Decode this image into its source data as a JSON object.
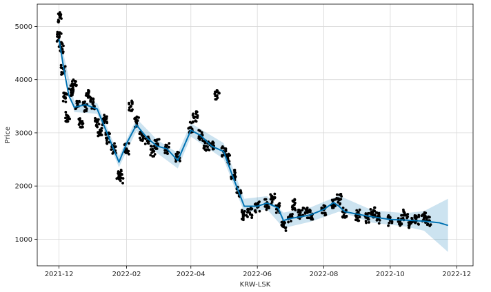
{
  "chart_data": {
    "type": "line",
    "xlabel": "KRW-LSK",
    "ylabel": "Price",
    "xlim": [
      "2021-11-11",
      "2022-12-16"
    ],
    "ylim": [
      500,
      5420
    ],
    "grid": true,
    "x_ticks": [
      "2021-12",
      "2022-02",
      "2022-04",
      "2022-06",
      "2022-08",
      "2022-10",
      "2022-12"
    ],
    "y_ticks": [
      1000,
      2000,
      3000,
      4000,
      5000
    ],
    "colors": {
      "forecast": "#0072B2",
      "interval": "#0072B2",
      "actual": "#000000"
    },
    "series": [
      {
        "kind": "forecast",
        "x": [
          "2021-12-01",
          "2021-12-05",
          "2021-12-10",
          "2021-12-15",
          "2021-12-25",
          "2022-01-05",
          "2022-01-15",
          "2022-01-25",
          "2022-02-01",
          "2022-02-10",
          "2022-02-20",
          "2022-03-01",
          "2022-03-10",
          "2022-03-20",
          "2022-04-01",
          "2022-04-10",
          "2022-04-20",
          "2022-05-01",
          "2022-05-10",
          "2022-05-20",
          "2022-06-01",
          "2022-06-10",
          "2022-06-20",
          "2022-06-25",
          "2022-07-01",
          "2022-07-10",
          "2022-07-20",
          "2022-08-01",
          "2022-08-10",
          "2022-08-15",
          "2022-08-20",
          "2022-09-01",
          "2022-09-15",
          "2022-10-01",
          "2022-10-15",
          "2022-11-01",
          "2022-11-15",
          "2022-11-23"
        ],
        "y": [
          4760,
          4250,
          3700,
          3480,
          3530,
          3450,
          2950,
          2450,
          2800,
          3150,
          2900,
          2750,
          2700,
          2480,
          3050,
          2950,
          2750,
          2650,
          2150,
          1620,
          1620,
          1680,
          1590,
          1350,
          1390,
          1420,
          1460,
          1560,
          1690,
          1620,
          1520,
          1470,
          1420,
          1370,
          1360,
          1340,
          1310,
          1260
        ]
      },
      {
        "kind": "interval",
        "x": [
          "2021-12-01",
          "2021-12-15",
          "2022-01-05",
          "2022-01-25",
          "2022-02-10",
          "2022-03-01",
          "2022-03-20",
          "2022-04-01",
          "2022-05-01",
          "2022-05-20",
          "2022-06-10",
          "2022-06-25",
          "2022-07-20",
          "2022-08-15",
          "2022-09-15",
          "2022-10-15",
          "2022-11-01",
          "2022-11-23"
        ],
        "lower": [
          4680,
          3390,
          3360,
          2350,
          3040,
          2620,
          2330,
          2930,
          2510,
          1500,
          1560,
          1210,
          1330,
          1520,
          1310,
          1240,
          1160,
          760
        ],
        "upper": [
          4850,
          3590,
          3560,
          2560,
          3270,
          2870,
          2620,
          3180,
          2810,
          1760,
          1810,
          1500,
          1600,
          1820,
          1540,
          1490,
          1530,
          1760
        ]
      },
      {
        "kind": "actual",
        "x": [
          "2021-12-01",
          "2021-12-02",
          "2021-12-03",
          "2021-12-05",
          "2021-12-07",
          "2021-12-09",
          "2021-12-12",
          "2021-12-15",
          "2021-12-18",
          "2021-12-21",
          "2021-12-25",
          "2021-12-28",
          "2022-01-01",
          "2022-01-05",
          "2022-01-08",
          "2022-01-12",
          "2022-01-15",
          "2022-01-20",
          "2022-01-25",
          "2022-01-27",
          "2022-02-01",
          "2022-02-05",
          "2022-02-10",
          "2022-02-15",
          "2022-02-20",
          "2022-02-25",
          "2022-03-01",
          "2022-03-10",
          "2022-03-20",
          "2022-04-01",
          "2022-04-05",
          "2022-04-10",
          "2022-04-15",
          "2022-04-20",
          "2022-04-25",
          "2022-05-01",
          "2022-05-05",
          "2022-05-10",
          "2022-05-15",
          "2022-05-20",
          "2022-05-25",
          "2022-06-01",
          "2022-06-10",
          "2022-06-15",
          "2022-06-20",
          "2022-06-25",
          "2022-07-01",
          "2022-07-05",
          "2022-07-10",
          "2022-07-15",
          "2022-07-20",
          "2022-08-01",
          "2022-08-10",
          "2022-08-15",
          "2022-08-20",
          "2022-09-01",
          "2022-09-10",
          "2022-09-15",
          "2022-09-20",
          "2022-10-01",
          "2022-10-10",
          "2022-10-15",
          "2022-10-20",
          "2022-10-25",
          "2022-11-01",
          "2022-11-05"
        ],
        "y": [
          4800,
          5180,
          4600,
          4200,
          3650,
          3300,
          3800,
          3900,
          3500,
          3200,
          3500,
          3700,
          3550,
          3200,
          3000,
          3250,
          2900,
          2700,
          2200,
          2150,
          2700,
          3500,
          3200,
          2950,
          2850,
          2650,
          2800,
          2700,
          2550,
          3100,
          3300,
          2950,
          2750,
          2750,
          3700,
          2650,
          2500,
          2200,
          1900,
          1450,
          1500,
          1600,
          1650,
          1750,
          1600,
          1250,
          1400,
          1650,
          1450,
          1500,
          1450,
          1550,
          1650,
          1750,
          1500,
          1450,
          1400,
          1500,
          1400,
          1350,
          1350,
          1450,
          1300,
          1350,
          1400,
          1350
        ]
      }
    ]
  }
}
